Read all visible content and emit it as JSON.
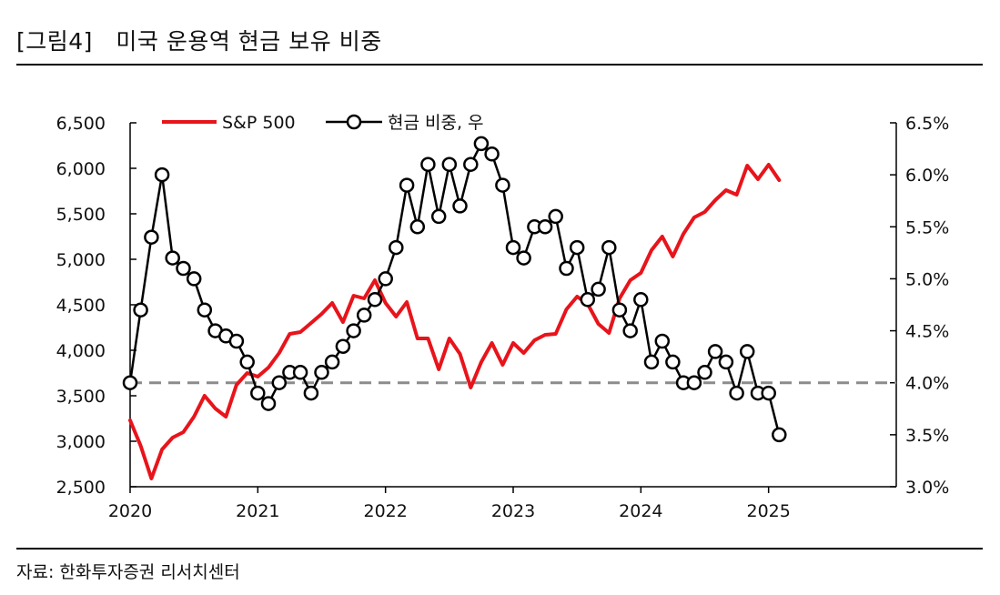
{
  "figure_title": "[그림4]　미국 운용역 현금 보유 비중",
  "source": "자료: 한화투자증권 리서치센터",
  "colors": {
    "sp500": "#e8141b",
    "cash": "#000000",
    "reference_line": "#8c8c8c",
    "marker_fill": "#ffffff"
  },
  "chart_data": {
    "type": "line",
    "title": "",
    "x_axis": {
      "range": [
        2020.0,
        2026.0
      ],
      "tick_values": [
        2020,
        2021,
        2022,
        2023,
        2024,
        2025
      ],
      "tick_labels": [
        "2020",
        "2021",
        "2022",
        "2023",
        "2024",
        "2025"
      ]
    },
    "y_left": {
      "range": [
        2500,
        6500
      ],
      "tick_values": [
        2500,
        3000,
        3500,
        4000,
        4500,
        5000,
        5500,
        6000,
        6500
      ],
      "tick_labels": [
        "2,500",
        "3,000",
        "3,500",
        "4,000",
        "4,500",
        "5,000",
        "5,500",
        "6,000",
        "6,500"
      ]
    },
    "y_right": {
      "range": [
        3.0,
        6.5
      ],
      "tick_values": [
        3.0,
        3.5,
        4.0,
        4.5,
        5.0,
        5.5,
        6.0,
        6.5
      ],
      "tick_labels": [
        "3.0%",
        "3.5%",
        "4.0%",
        "4.5%",
        "5.0%",
        "5.5%",
        "6.0%",
        "6.5%"
      ]
    },
    "reference_line": {
      "axis": "right",
      "value": 4.0,
      "style": "dashed"
    },
    "legend": {
      "position": "top-left"
    },
    "grid": false,
    "series": [
      {
        "name": "S&P 500",
        "axis": "left",
        "style": "line",
        "x": [
          2020.0,
          2020.083,
          2020.167,
          2020.25,
          2020.333,
          2020.417,
          2020.5,
          2020.583,
          2020.667,
          2020.75,
          2020.833,
          2020.917,
          2021.0,
          2021.083,
          2021.167,
          2021.25,
          2021.333,
          2021.417,
          2021.5,
          2021.583,
          2021.667,
          2021.75,
          2021.833,
          2021.917,
          2022.0,
          2022.083,
          2022.167,
          2022.25,
          2022.333,
          2022.417,
          2022.5,
          2022.583,
          2022.667,
          2022.75,
          2022.833,
          2022.917,
          2023.0,
          2023.083,
          2023.167,
          2023.25,
          2023.333,
          2023.417,
          2023.5,
          2023.583,
          2023.667,
          2023.75,
          2023.833,
          2023.917,
          2024.0,
          2024.083,
          2024.167,
          2024.25,
          2024.333,
          2024.417,
          2024.5,
          2024.583,
          2024.667,
          2024.75,
          2024.833,
          2024.917,
          2025.0,
          2025.083
        ],
        "values": [
          3230,
          2950,
          2590,
          2910,
          3040,
          3100,
          3270,
          3500,
          3360,
          3270,
          3620,
          3750,
          3710,
          3810,
          3970,
          4180,
          4200,
          4300,
          4400,
          4520,
          4310,
          4600,
          4570,
          4770,
          4520,
          4370,
          4530,
          4130,
          4130,
          3790,
          4130,
          3960,
          3590,
          3870,
          4080,
          3840,
          4080,
          3970,
          4110,
          4170,
          4180,
          4450,
          4590,
          4510,
          4290,
          4190,
          4570,
          4770,
          4850,
          5100,
          5250,
          5030,
          5280,
          5460,
          5520,
          5650,
          5760,
          5710,
          6030,
          5880,
          6040,
          5870
        ]
      },
      {
        "name": "현금 비중, 우",
        "axis": "right",
        "style": "line-marker",
        "x": [
          2020.0,
          2020.083,
          2020.167,
          2020.25,
          2020.333,
          2020.417,
          2020.5,
          2020.583,
          2020.667,
          2020.75,
          2020.833,
          2020.917,
          2021.0,
          2021.083,
          2021.167,
          2021.25,
          2021.333,
          2021.417,
          2021.5,
          2021.583,
          2021.667,
          2021.75,
          2021.833,
          2021.917,
          2022.0,
          2022.083,
          2022.167,
          2022.25,
          2022.333,
          2022.417,
          2022.5,
          2022.583,
          2022.667,
          2022.75,
          2022.833,
          2022.917,
          2023.0,
          2023.083,
          2023.167,
          2023.25,
          2023.333,
          2023.417,
          2023.5,
          2023.583,
          2023.667,
          2023.75,
          2023.833,
          2023.917,
          2024.0,
          2024.083,
          2024.167,
          2024.25,
          2024.333,
          2024.417,
          2024.5,
          2024.583,
          2024.667,
          2024.75,
          2024.833,
          2024.917,
          2025.0,
          2025.083
        ],
        "values": [
          4.0,
          4.7,
          5.4,
          6.0,
          5.2,
          5.1,
          5.0,
          4.7,
          4.5,
          4.45,
          4.4,
          4.2,
          3.9,
          3.8,
          4.0,
          4.1,
          4.1,
          3.9,
          4.1,
          4.2,
          4.35,
          4.5,
          4.65,
          4.8,
          5.0,
          5.3,
          5.9,
          5.5,
          6.1,
          5.6,
          6.1,
          5.7,
          6.1,
          6.3,
          6.2,
          5.9,
          5.3,
          5.2,
          5.5,
          5.5,
          5.6,
          5.1,
          5.3,
          4.8,
          4.9,
          5.3,
          4.7,
          4.5,
          4.8,
          4.2,
          4.4,
          4.2,
          4.0,
          4.0,
          4.1,
          4.3,
          4.2,
          3.9,
          4.3,
          3.9,
          3.9,
          3.5
        ]
      }
    ]
  }
}
